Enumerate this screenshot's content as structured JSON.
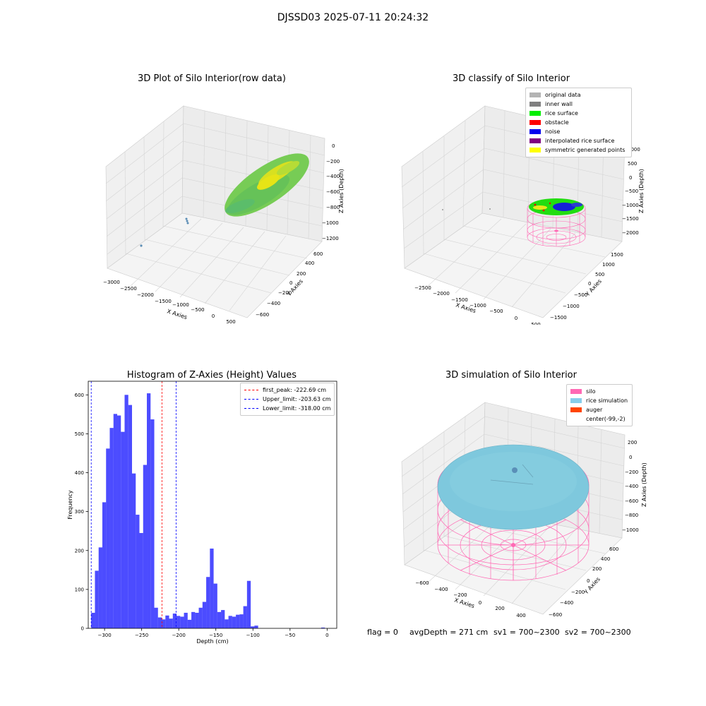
{
  "suptitle": "DJSSD03 2025-07-11 20:24:32",
  "panels": {
    "raw": {
      "title": "3D Plot of Silo Interior(row data)",
      "xlabel": "X Axies",
      "ylabel": "Y Axies",
      "zlabel": "Z Axies (Depth)",
      "xticks": [
        "−3000",
        "−2500",
        "−2000",
        "−1500",
        "−1000",
        "−500",
        "0",
        "500"
      ],
      "yticks": [
        "−600",
        "−400",
        "−200",
        "0",
        "200",
        "400",
        "600"
      ],
      "zticks": [
        "0",
        "−200",
        "−400",
        "−600",
        "−800",
        "−1000",
        "−1200"
      ]
    },
    "classify": {
      "title": "3D classify of Silo Interior",
      "xlabel": "X Axies",
      "ylabel": "Y Axies",
      "zlabel": "Z Axies (Depth)",
      "xticks": [
        "−2500",
        "−2000",
        "−1500",
        "−1000",
        "−500",
        "0",
        "500"
      ],
      "yticks": [
        "−1500",
        "−1000",
        "−500",
        "0",
        "500",
        "1000",
        "1500"
      ],
      "zticks": [
        "1000",
        "500",
        "0",
        "−500",
        "−1000",
        "−1500",
        "−2000"
      ],
      "legend": [
        {
          "label": "original data",
          "color": "#b3b3b3"
        },
        {
          "label": "inner wall",
          "color": "#808080"
        },
        {
          "label": "rice surface",
          "color": "#00ee00"
        },
        {
          "label": "obstacle",
          "color": "#ff0000"
        },
        {
          "label": "noise",
          "color": "#0000ee"
        },
        {
          "label": "interpolated rice surface",
          "color": "#800080"
        },
        {
          "label": "symmetric generated points",
          "color": "#ffff00"
        }
      ]
    },
    "simulation": {
      "title": "3D simulation of Silo Interior",
      "xlabel": "X Axies",
      "ylabel": "Y Axies",
      "zlabel": "Z Axies (Depth)",
      "xticks": [
        "−600",
        "−400",
        "−200",
        "0",
        "200",
        "400"
      ],
      "yticks": [
        "−600",
        "−400",
        "−200",
        "0",
        "200",
        "400",
        "600"
      ],
      "zticks": [
        "200",
        "0",
        "−200",
        "−400",
        "−600",
        "−800",
        "−1000"
      ],
      "legend": [
        {
          "label": "silo",
          "color": "#ff69b4"
        },
        {
          "label": "rice simulation",
          "color": "#87ceeb"
        },
        {
          "label": "auger",
          "color": "#ff4500"
        },
        {
          "label": "center(-99,-2)",
          "color": ""
        }
      ]
    }
  },
  "footer": {
    "flag": "flag = 0",
    "avg_depth": "avgDepth = 271 cm",
    "sv1": "sv1 = 700~2300",
    "sv2": "sv2 = 700~2300"
  },
  "chart_data": [
    {
      "type": "bar",
      "title": "Histogram of Z-Axies (Height) Values",
      "xlabel": "Depth (cm)",
      "ylabel": "Frequency",
      "xlim": [
        -322,
        13
      ],
      "ylim": [
        0,
        635
      ],
      "bar_color": "#0000ff",
      "bin_width": 5,
      "xticks": [
        -300,
        -250,
        -200,
        -150,
        -100,
        -50,
        0
      ],
      "xtick_labels": [
        "−300",
        "−250",
        "−200",
        "−150",
        "−100",
        "−50",
        "0"
      ],
      "yticks": [
        0,
        100,
        200,
        300,
        400,
        500,
        600
      ],
      "bins": [
        {
          "x": -318,
          "v": 40
        },
        {
          "x": -313,
          "v": 148
        },
        {
          "x": -308,
          "v": 208
        },
        {
          "x": -303,
          "v": 324
        },
        {
          "x": -298,
          "v": 462
        },
        {
          "x": -293,
          "v": 515
        },
        {
          "x": -288,
          "v": 551
        },
        {
          "x": -283,
          "v": 547
        },
        {
          "x": -278,
          "v": 505
        },
        {
          "x": -273,
          "v": 600
        },
        {
          "x": -268,
          "v": 574
        },
        {
          "x": -263,
          "v": 398
        },
        {
          "x": -258,
          "v": 292
        },
        {
          "x": -253,
          "v": 245
        },
        {
          "x": -248,
          "v": 420
        },
        {
          "x": -243,
          "v": 604
        },
        {
          "x": -238,
          "v": 537
        },
        {
          "x": -233,
          "v": 53
        },
        {
          "x": -228,
          "v": 28
        },
        {
          "x": -223,
          "v": 23
        },
        {
          "x": -218,
          "v": 33
        },
        {
          "x": -213,
          "v": 25
        },
        {
          "x": -208,
          "v": 38
        },
        {
          "x": -203,
          "v": 32
        },
        {
          "x": -198,
          "v": 30
        },
        {
          "x": -193,
          "v": 40
        },
        {
          "x": -188,
          "v": 22
        },
        {
          "x": -183,
          "v": 42
        },
        {
          "x": -178,
          "v": 40
        },
        {
          "x": -173,
          "v": 53
        },
        {
          "x": -168,
          "v": 68
        },
        {
          "x": -163,
          "v": 132
        },
        {
          "x": -158,
          "v": 205
        },
        {
          "x": -153,
          "v": 115
        },
        {
          "x": -148,
          "v": 42
        },
        {
          "x": -143,
          "v": 47
        },
        {
          "x": -138,
          "v": 23
        },
        {
          "x": -133,
          "v": 32
        },
        {
          "x": -128,
          "v": 30
        },
        {
          "x": -123,
          "v": 35
        },
        {
          "x": -118,
          "v": 36
        },
        {
          "x": -113,
          "v": 57
        },
        {
          "x": -108,
          "v": 122
        },
        {
          "x": -103,
          "v": 5
        },
        {
          "x": -98,
          "v": 7
        },
        {
          "x": -8,
          "v": 2
        }
      ],
      "vlines": [
        {
          "x": -222.69,
          "color": "#ff0000",
          "label": "first_peak: -222.69 cm"
        },
        {
          "x": -203.63,
          "color": "#0000ff",
          "label": "Upper_limit: -203.63 cm"
        },
        {
          "x": -318.0,
          "color": "#0000ff",
          "label": "Lower_limit: -318.00 cm"
        }
      ],
      "legend_position": "top-right"
    }
  ]
}
